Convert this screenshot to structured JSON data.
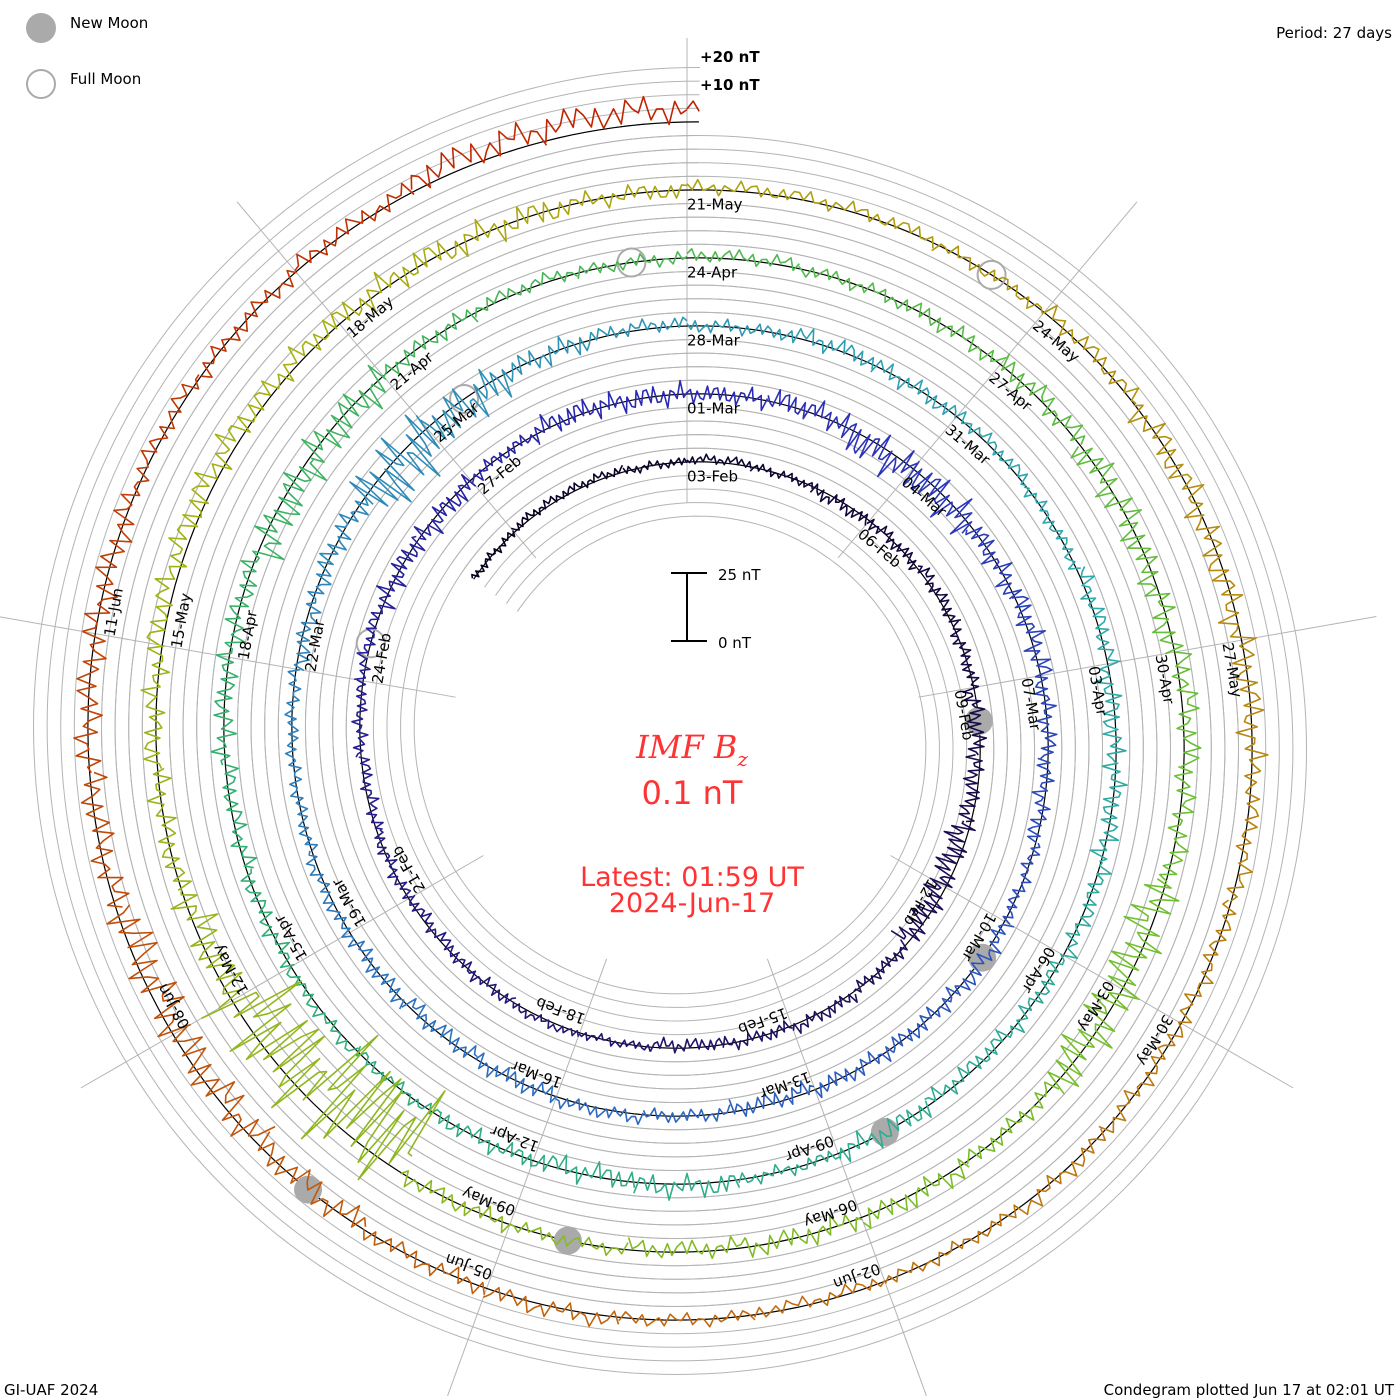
{
  "legend": {
    "new_moon": "New Moon",
    "full_moon": "Full Moon",
    "new_moon_color": "#aaaaaa",
    "full_moon_color": "#aaaaaa"
  },
  "period_label": "Period: 27 days",
  "footer_left": "GI-UAF 2024",
  "footer_right": "Condegram plotted Jun 17 at 02:01 UT",
  "center": {
    "title_main": "IMF B",
    "title_sub": "z",
    "current_value": "0.1 nT",
    "latest": "Latest: 01:59 UT",
    "latest_date": "2024-Jun-17",
    "color": "#ff3333"
  },
  "scale_bar": {
    "top_label": "25 nT",
    "bottom_label": "0 nT",
    "value_nT": 25
  },
  "offset_labels": [
    {
      "text": "+20 nT",
      "value": 20
    },
    {
      "text": "+10 nT",
      "value": 10
    }
  ],
  "chart_data": {
    "type": "line",
    "title": "IMF Bz condegram (spiral)",
    "period_days": 27,
    "spiral_reference_date": "2024-02-03",
    "data_start_date": "2024-01-30",
    "data_end": "2024-06-17 02:00 UT",
    "units": "nT",
    "gridline_step_nT": 5,
    "gridline_range_nT": [
      -20,
      20
    ],
    "daily_bz_mean": [
      0,
      1,
      1,
      0,
      1,
      0,
      -1,
      0,
      1,
      0,
      -1,
      -2,
      -3,
      -2,
      0,
      1,
      0,
      -1,
      0,
      1,
      0,
      -1,
      0,
      -1,
      0,
      1,
      0,
      -1,
      0,
      1,
      0,
      0,
      1,
      -2,
      -1,
      0,
      1,
      0,
      -1,
      0,
      1,
      0,
      0,
      -1,
      0,
      1,
      0,
      -1,
      0,
      1,
      0,
      0,
      -1,
      0,
      -3,
      -2,
      0,
      1,
      0,
      1,
      0,
      1,
      0,
      1,
      -1,
      0,
      1,
      0,
      -1,
      0,
      0,
      1,
      -1,
      0,
      0,
      1,
      0,
      -1,
      0,
      0,
      -2,
      -1,
      0,
      1,
      0,
      1,
      0,
      0,
      1,
      0,
      -1,
      2,
      1,
      -2,
      -1,
      0,
      1,
      0,
      -1,
      0,
      0,
      -10,
      -6,
      -2,
      0,
      1,
      3,
      3,
      2,
      1,
      0,
      0,
      1,
      1,
      0,
      1,
      0,
      -1,
      0,
      1,
      0,
      0,
      1,
      0,
      -1,
      0,
      1,
      0,
      -1,
      -2,
      -3,
      -1,
      0,
      0,
      1,
      0,
      1,
      4,
      5,
      5
    ],
    "daily_bz_spread": [
      2,
      2,
      2,
      2,
      2,
      2,
      3,
      3,
      3,
      3,
      4,
      4,
      6,
      6,
      3,
      3,
      3,
      3,
      2,
      2,
      3,
      3,
      3,
      3,
      3,
      3,
      5,
      5,
      3,
      5,
      5,
      4,
      5,
      8,
      8,
      5,
      5,
      4,
      4,
      3,
      4,
      4,
      4,
      4,
      3,
      3,
      4,
      4,
      4,
      3,
      3,
      3,
      4,
      5,
      14,
      9,
      5,
      3,
      3,
      4,
      4,
      3,
      3,
      4,
      5,
      5,
      4,
      4,
      4,
      5,
      3,
      5,
      5,
      4,
      3,
      3,
      4,
      4,
      5,
      5,
      8,
      8,
      4,
      3,
      3,
      3,
      3,
      4,
      5,
      7,
      6,
      5,
      5,
      10,
      10,
      4,
      5,
      5,
      4,
      3,
      4,
      25,
      20,
      8,
      5,
      5,
      5,
      6,
      5,
      6,
      6,
      4,
      3,
      3,
      3,
      4,
      6,
      6,
      6,
      4,
      4,
      4,
      4,
      3,
      3,
      3,
      4,
      4,
      6,
      8,
      9,
      6,
      6,
      6,
      4,
      4,
      4,
      6,
      6,
      3
    ],
    "color_stops": [
      "#0a0020",
      "#201060",
      "#2a2ab8",
      "#2d6fc0",
      "#30a8b0",
      "#30b070",
      "#70c030",
      "#a8b010",
      "#c07010",
      "#c02000"
    ],
    "date_labels": [
      "03-Feb",
      "06-Feb",
      "09-Feb",
      "12-Feb",
      "15-Feb",
      "18-Feb",
      "21-Feb",
      "24-Feb",
      "27-Feb",
      "01-Mar",
      "04-Mar",
      "07-Mar",
      "10-Mar",
      "13-Mar",
      "16-Mar",
      "19-Mar",
      "22-Mar",
      "25-Mar",
      "28-Mar",
      "31-Mar",
      "03-Apr",
      "06-Apr",
      "09-Apr",
      "12-Apr",
      "15-Apr",
      "18-Apr",
      "21-Apr",
      "24-Apr",
      "27-Apr",
      "30-Apr",
      "03-May",
      "06-May",
      "09-May",
      "12-May",
      "15-May",
      "18-May",
      "21-May",
      "24-May",
      "27-May",
      "30-May",
      "02-Jun",
      "05-Jun",
      "08-Jun",
      "11-Jun"
    ],
    "label_interval_days": 3,
    "new_moons": [
      "2024-02-09",
      "2024-03-10",
      "2024-04-08",
      "2024-05-08",
      "2024-06-06"
    ],
    "full_moons": [
      "2024-02-24",
      "2024-03-25",
      "2024-04-23",
      "2024-05-23"
    ]
  }
}
